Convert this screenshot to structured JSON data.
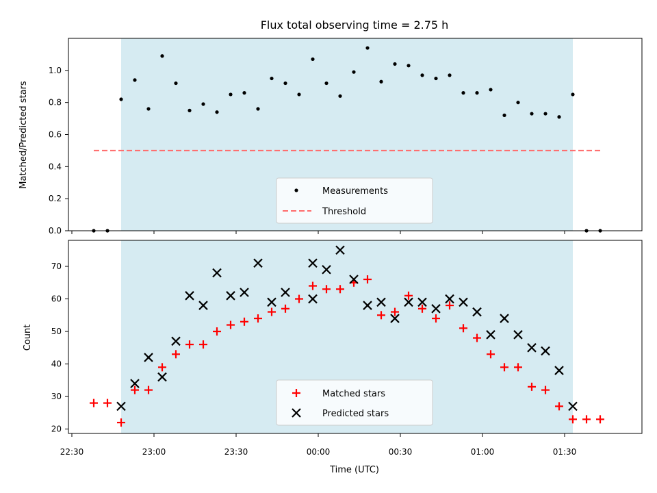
{
  "chart_data": [
    {
      "type": "scatter",
      "title": "Flux total observing time = 2.75 h",
      "ylabel": "Matched/Predicted stars",
      "ylim": [
        0,
        1.2
      ],
      "yticks": [
        "0.0",
        "0.2",
        "0.4",
        "0.6",
        "0.8",
        "1.0"
      ],
      "xlim": [
        "22:30",
        "01:50"
      ],
      "observing_window": [
        "22:48",
        "01:33"
      ],
      "grid": false,
      "legend": "bottom-center",
      "series": [
        {
          "name": "Measurements",
          "marker": "dot",
          "color": "#000000",
          "x": [
            "22:38",
            "22:43",
            "22:48",
            "22:53",
            "22:58",
            "23:03",
            "23:08",
            "23:13",
            "23:18",
            "23:23",
            "23:28",
            "23:33",
            "23:38",
            "23:43",
            "23:48",
            "23:53",
            "23:58",
            "00:03",
            "00:08",
            "00:13",
            "00:18",
            "00:23",
            "00:28",
            "00:33",
            "00:38",
            "00:43",
            "00:48",
            "00:53",
            "00:58",
            "01:03",
            "01:08",
            "01:13",
            "01:18",
            "01:23",
            "01:28",
            "01:33",
            "01:38",
            "01:43"
          ],
          "y": [
            0.0,
            0.0,
            0.82,
            0.94,
            0.76,
            1.09,
            0.92,
            0.75,
            0.79,
            0.74,
            0.85,
            0.86,
            0.76,
            0.95,
            0.92,
            0.85,
            1.07,
            0.92,
            0.84,
            0.99,
            1.14,
            0.93,
            1.04,
            1.03,
            0.97,
            0.95,
            0.97,
            0.86,
            0.86,
            0.88,
            0.72,
            0.8,
            0.73,
            0.73,
            0.71,
            0.85,
            0.0,
            0.0
          ]
        },
        {
          "name": "Threshold",
          "style": "dashed",
          "color": "#ff6b6b",
          "x": [
            "22:38",
            "01:43"
          ],
          "y": [
            0.5,
            0.5
          ]
        }
      ]
    },
    {
      "type": "scatter",
      "ylabel": "Count",
      "xlabel": "Time (UTC)",
      "ylim": [
        19.5,
        78
      ],
      "yticks": [
        "20",
        "30",
        "40",
        "50",
        "60",
        "70"
      ],
      "xlim": [
        "22:30",
        "01:50"
      ],
      "xticks": [
        "22:30",
        "23:00",
        "23:30",
        "00:00",
        "00:30",
        "01:00",
        "01:30"
      ],
      "observing_window": [
        "22:48",
        "01:33"
      ],
      "grid": false,
      "legend": "bottom-center",
      "series": [
        {
          "name": "Matched stars",
          "marker": "plus",
          "color": "#ff0000",
          "x": [
            "22:38",
            "22:43",
            "22:48",
            "22:53",
            "22:58",
            "23:03",
            "23:08",
            "23:13",
            "23:18",
            "23:23",
            "23:28",
            "23:33",
            "23:38",
            "23:43",
            "23:48",
            "23:53",
            "23:58",
            "00:03",
            "00:08",
            "00:13",
            "00:18",
            "00:23",
            "00:28",
            "00:33",
            "00:38",
            "00:43",
            "00:48",
            "00:53",
            "00:58",
            "01:03",
            "01:08",
            "01:13",
            "01:18",
            "01:23",
            "01:28",
            "01:33",
            "01:38",
            "01:43"
          ],
          "y": [
            28,
            28,
            22,
            32,
            32,
            39,
            43,
            46,
            46,
            50,
            52,
            53,
            54,
            56,
            57,
            60,
            64,
            63,
            63,
            65,
            66,
            55,
            56,
            61,
            57,
            54,
            58,
            51,
            48,
            43,
            39,
            39,
            33,
            32,
            27,
            23,
            23,
            23
          ]
        },
        {
          "name": "Predicted stars",
          "marker": "x",
          "color": "#000000",
          "x": [
            "22:48",
            "22:53",
            "22:58",
            "23:03",
            "23:08",
            "23:13",
            "23:18",
            "23:23",
            "23:28",
            "23:33",
            "23:38",
            "23:43",
            "23:48",
            "23:58",
            "23:58",
            "00:03",
            "00:08",
            "00:13",
            "00:18",
            "00:23",
            "00:28",
            "00:33",
            "00:38",
            "00:43",
            "00:48",
            "00:53",
            "00:58",
            "01:03",
            "01:08",
            "01:13",
            "01:18",
            "01:23",
            "01:28",
            "01:33"
          ],
          "y": [
            27,
            34,
            42,
            36,
            47,
            61,
            58,
            68,
            61,
            62,
            71,
            59,
            62,
            71,
            60,
            69,
            75,
            66,
            58,
            59,
            54,
            59,
            59,
            57,
            60,
            59,
            56,
            49,
            54,
            49,
            45,
            44,
            38,
            27
          ]
        }
      ]
    }
  ]
}
